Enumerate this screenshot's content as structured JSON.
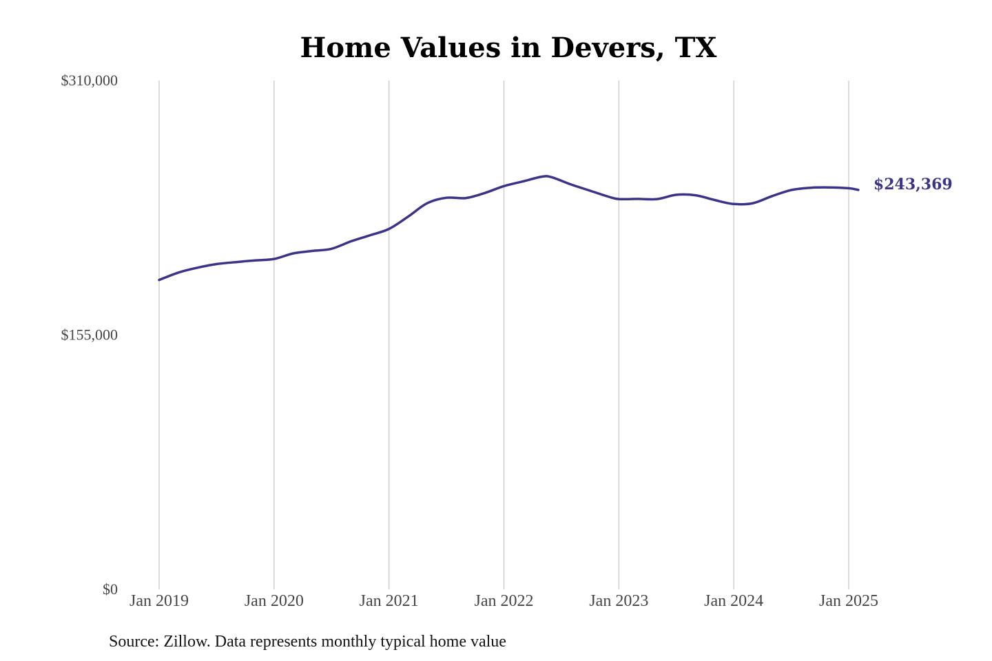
{
  "chart_data": {
    "type": "line",
    "title": "Home Values in Devers, TX",
    "source": "Source: Zillow. Data represents monthly typical home value",
    "ylim": [
      0,
      310000
    ],
    "y_ticks": [
      {
        "value": 0,
        "label": "$0"
      },
      {
        "value": 155000,
        "label": "$155,000"
      },
      {
        "value": 310000,
        "label": "$310,000"
      }
    ],
    "x_ticks": [
      {
        "value": "2019-01",
        "label": "Jan 2019"
      },
      {
        "value": "2020-01",
        "label": "Jan 2020"
      },
      {
        "value": "2021-01",
        "label": "Jan 2021"
      },
      {
        "value": "2022-01",
        "label": "Jan 2022"
      },
      {
        "value": "2023-01",
        "label": "Jan 2023"
      },
      {
        "value": "2024-01",
        "label": "Jan 2024"
      },
      {
        "value": "2025-01",
        "label": "Jan 2025"
      }
    ],
    "grid": {
      "vertical": true,
      "horizontal": false
    },
    "line_color": "#3a3387",
    "end_label": "$243,369",
    "series": [
      {
        "x": [
          "2019-01",
          "2019-03",
          "2019-05",
          "2019-07",
          "2019-09",
          "2019-11",
          "2020-01",
          "2020-03",
          "2020-05",
          "2020-07",
          "2020-09",
          "2020-11",
          "2021-01",
          "2021-03",
          "2021-05",
          "2021-07",
          "2021-09",
          "2021-11",
          "2022-01",
          "2022-03",
          "2022-05",
          "2022-06",
          "2022-08",
          "2022-10",
          "2022-12",
          "2023-01",
          "2023-03",
          "2023-05",
          "2023-07",
          "2023-09",
          "2023-11",
          "2024-01",
          "2024-03",
          "2024-05",
          "2024-07",
          "2024-09",
          "2024-11",
          "2025-01",
          "2025-02"
        ],
        "y": [
          188500,
          193000,
          196000,
          198200,
          199400,
          200400,
          201300,
          204700,
          206200,
          207500,
          212000,
          215700,
          219600,
          227100,
          235300,
          238600,
          238400,
          241500,
          245700,
          248600,
          251500,
          251100,
          246700,
          242900,
          239100,
          237800,
          237900,
          237800,
          240400,
          240100,
          237200,
          234800,
          235300,
          239600,
          243300,
          244700,
          244900,
          244400,
          243369
        ]
      }
    ]
  }
}
